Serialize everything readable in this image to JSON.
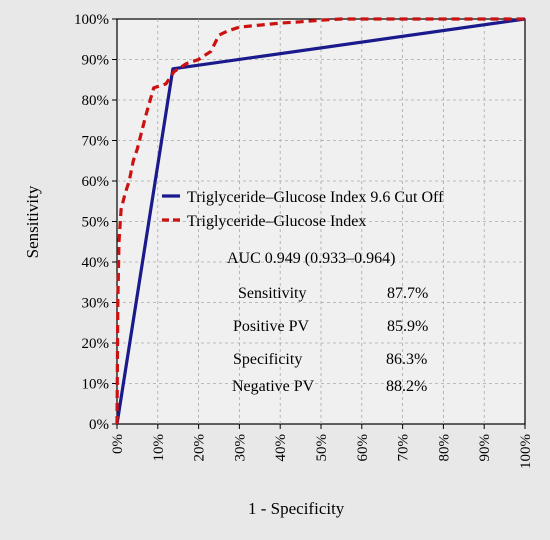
{
  "chart_data": {
    "type": "line",
    "xlabel": "1 - Specificity",
    "ylabel": "Sensitivity",
    "xlim": [
      0,
      100
    ],
    "ylim": [
      0,
      100
    ],
    "xticks": [
      "0%",
      "10%",
      "20%",
      "30%",
      "40%",
      "50%",
      "60%",
      "70%",
      "80%",
      "90%",
      "100%"
    ],
    "yticks": [
      "0%",
      "10%",
      "20%",
      "30%",
      "40%",
      "50%",
      "60%",
      "70%",
      "80%",
      "90%",
      "100%"
    ],
    "grid": true,
    "legend_position": "middle-right",
    "series": [
      {
        "name": "Triglyceride–Glucose Index 9.6 Cut Off",
        "color": "#1a1a8c",
        "style": "solid",
        "x": [
          0,
          13.7,
          100
        ],
        "y": [
          0,
          87.7,
          100
        ]
      },
      {
        "name": "Triglyceride–Glucose Index",
        "color": "#cc1111",
        "style": "dashed",
        "x": [
          0,
          0.2,
          0.5,
          1,
          2,
          3,
          4,
          5,
          7,
          9,
          12,
          14,
          17,
          20,
          23,
          25,
          27,
          30,
          35,
          40,
          45,
          50,
          55,
          60,
          70,
          80,
          90,
          100
        ],
        "y": [
          0,
          30,
          45,
          53,
          57,
          60,
          65,
          68,
          76,
          83,
          84,
          87,
          89,
          90,
          92,
          96,
          97,
          98,
          98.5,
          99,
          99.3,
          99.7,
          100,
          100,
          100,
          100,
          100,
          100
        ]
      }
    ],
    "annotations": {
      "auc": "AUC 0.949 (0.933–0.964)",
      "stats": [
        {
          "label": "Sensitivity",
          "value": "87.7%"
        },
        {
          "label": "Positive PV",
          "value": "85.9%"
        },
        {
          "label": "Specificity",
          "value": "86.3%"
        },
        {
          "label": "Negative PV",
          "value": "88.2%"
        }
      ]
    }
  }
}
